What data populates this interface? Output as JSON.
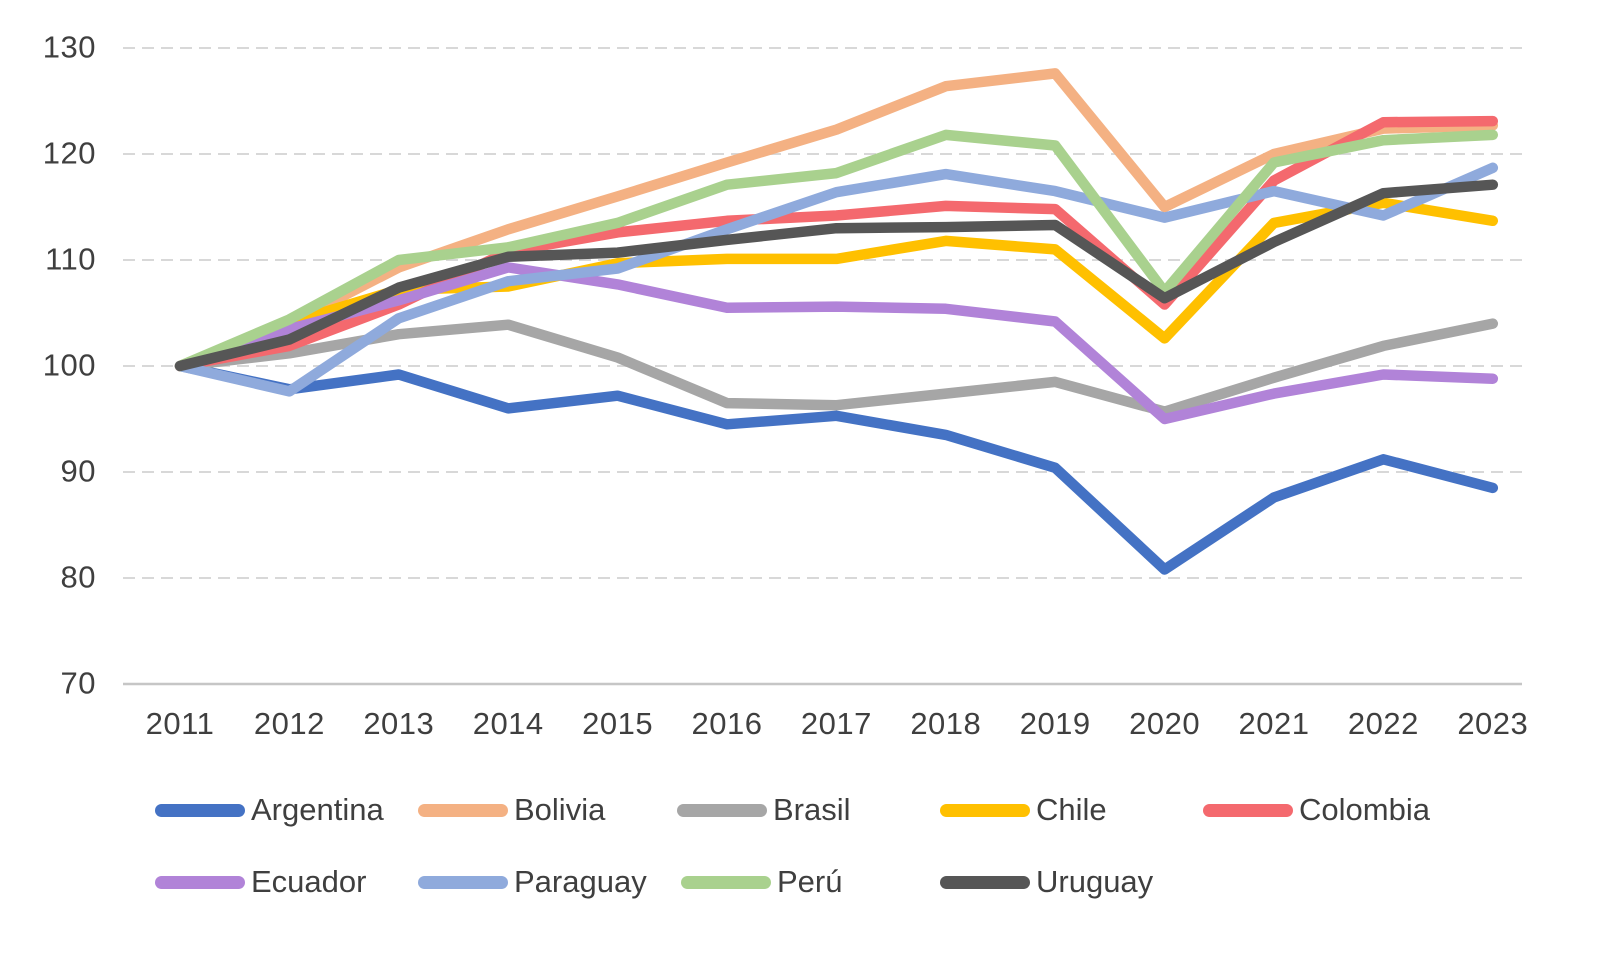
{
  "chart_data": {
    "type": "line",
    "title": "",
    "xlabel": "",
    "ylabel": "",
    "x": [
      2011,
      2012,
      2013,
      2014,
      2015,
      2016,
      2017,
      2018,
      2019,
      2020,
      2021,
      2022,
      2023
    ],
    "x_tick_labels": [
      "2011",
      "2012",
      "2013",
      "2014",
      "2015",
      "2016",
      "2017",
      "2018",
      "2019",
      "2020",
      "2021",
      "2022",
      "2023"
    ],
    "y_tick_labels": [
      "70",
      "80",
      "90",
      "100",
      "110",
      "120",
      "130"
    ],
    "yticks": [
      70,
      80,
      90,
      100,
      110,
      120,
      130
    ],
    "ylim": [
      70,
      130
    ],
    "grid": "horizontal-dashed",
    "legend_position": "bottom-two-rows",
    "series": [
      {
        "name": "Argentina",
        "color": "#4472C4",
        "values": [
          100,
          97.8,
          99.2,
          96.0,
          97.2,
          94.5,
          95.3,
          93.5,
          90.4,
          80.8,
          87.6,
          91.2,
          88.5
        ]
      },
      {
        "name": "Bolivia",
        "color": "#F4B183",
        "values": [
          100,
          104.0,
          109.3,
          112.9,
          116.0,
          119.2,
          122.3,
          126.4,
          127.6,
          115.0,
          120.0,
          122.4,
          122.7
        ]
      },
      {
        "name": "Brasil",
        "color": "#A6A6A6",
        "values": [
          100,
          101.2,
          103.0,
          103.9,
          100.8,
          96.5,
          96.3,
          97.4,
          98.5,
          95.7,
          98.9,
          101.9,
          104.0
        ]
      },
      {
        "name": "Chile",
        "color": "#FFC000",
        "values": [
          100,
          104.1,
          107.2,
          107.5,
          109.7,
          110.1,
          110.1,
          111.8,
          111.0,
          102.6,
          113.5,
          115.4,
          113.7
        ]
      },
      {
        "name": "Colombia",
        "color": "#F4696E",
        "values": [
          100,
          101.9,
          105.8,
          110.8,
          112.6,
          113.7,
          114.2,
          115.1,
          114.8,
          105.8,
          117.5,
          123.0,
          123.1
        ]
      },
      {
        "name": "Ecuador",
        "color": "#B183D8",
        "values": [
          100,
          103.5,
          106.2,
          109.3,
          107.7,
          105.5,
          105.6,
          105.4,
          104.2,
          95.0,
          97.4,
          99.2,
          98.8
        ]
      },
      {
        "name": "Paraguay",
        "color": "#8FAADC",
        "values": [
          100,
          97.6,
          104.5,
          108.0,
          109.2,
          112.9,
          116.4,
          118.1,
          116.5,
          114.0,
          116.5,
          114.2,
          118.7
        ]
      },
      {
        "name": "Perú",
        "color": "#A9D18E",
        "values": [
          100,
          104.4,
          110.0,
          111.2,
          113.5,
          117.1,
          118.2,
          121.8,
          120.8,
          107.0,
          119.2,
          121.3,
          121.8
        ]
      },
      {
        "name": "Uruguay",
        "color": "#565656",
        "values": [
          100,
          102.5,
          107.4,
          110.3,
          110.7,
          111.9,
          113.0,
          113.1,
          113.3,
          106.4,
          111.7,
          116.3,
          117.1
        ]
      }
    ]
  }
}
